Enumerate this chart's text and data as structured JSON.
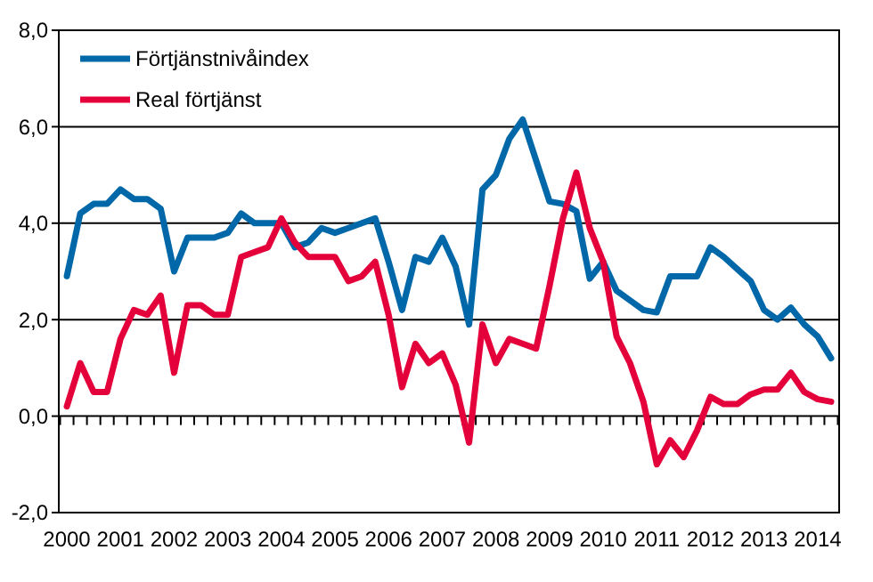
{
  "chart_data": {
    "type": "line",
    "categories": [
      "2000",
      null,
      null,
      null,
      "2001",
      null,
      null,
      null,
      "2002",
      null,
      null,
      null,
      "2003",
      null,
      null,
      null,
      "2004",
      null,
      null,
      null,
      "2005",
      null,
      null,
      null,
      "2006",
      null,
      null,
      null,
      "2007",
      null,
      null,
      null,
      "2008",
      null,
      null,
      null,
      "2009",
      null,
      null,
      null,
      "2010",
      null,
      null,
      null,
      "2011",
      null,
      null,
      null,
      "2012",
      null,
      null,
      null,
      "2013",
      null,
      null,
      null,
      "2014",
      null
    ],
    "series": [
      {
        "name": "Förtjänstnivåindex",
        "color": "#0068a8",
        "values": [
          2.9,
          4.2,
          4.4,
          4.4,
          4.7,
          4.5,
          4.5,
          4.3,
          3.0,
          3.7,
          3.7,
          3.7,
          3.8,
          4.2,
          4.0,
          4.0,
          4.0,
          3.5,
          3.6,
          3.9,
          3.8,
          3.9,
          4.0,
          4.1,
          3.2,
          2.2,
          3.3,
          3.2,
          3.7,
          3.1,
          1.9,
          4.7,
          5.0,
          5.75,
          6.15,
          5.3,
          4.45,
          4.4,
          4.25,
          2.85,
          3.2,
          2.6,
          2.4,
          2.2,
          2.15,
          2.9,
          2.9,
          2.9,
          3.5,
          3.3,
          3.05,
          2.8,
          2.2,
          2.0,
          2.25,
          1.9,
          1.65,
          1.2
        ]
      },
      {
        "name": "Real förtjänst",
        "color": "#e4003a",
        "values": [
          0.2,
          1.1,
          0.5,
          0.5,
          1.6,
          2.2,
          2.1,
          2.5,
          0.9,
          2.3,
          2.3,
          2.1,
          2.1,
          3.3,
          3.4,
          3.5,
          4.1,
          3.6,
          3.3,
          3.3,
          3.3,
          2.8,
          2.9,
          3.2,
          2.1,
          0.6,
          1.5,
          1.1,
          1.3,
          0.65,
          -0.55,
          1.9,
          1.1,
          1.6,
          1.5,
          1.4,
          2.7,
          4.1,
          5.05,
          3.9,
          3.2,
          1.65,
          1.1,
          0.3,
          -1.0,
          -0.5,
          -0.85,
          -0.3,
          0.4,
          0.25,
          0.25,
          0.45,
          0.55,
          0.55,
          0.9,
          0.5,
          0.35,
          0.3
        ]
      }
    ],
    "ylim": [
      -2,
      8
    ],
    "yticks": [
      {
        "value": -2,
        "label": "-2,0"
      },
      {
        "value": 0,
        "label": "0,0"
      },
      {
        "value": 2,
        "label": "2,0"
      },
      {
        "value": 4,
        "label": "4,0"
      },
      {
        "value": 6,
        "label": "6,0"
      },
      {
        "value": 8,
        "label": "8,0"
      }
    ],
    "grid": "y",
    "legend": "top left",
    "marker": "none",
    "line_style": "solid"
  }
}
